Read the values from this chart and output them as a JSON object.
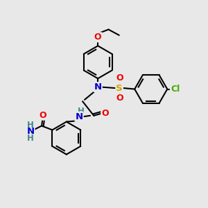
{
  "bg_color": "#e8e8e8",
  "bond_color": "#000000",
  "bond_lw": 1.5,
  "atom_colors": {
    "N": "#0000cc",
    "O": "#ee0000",
    "S": "#ccaa00",
    "Cl": "#44aa00",
    "C": "#000000",
    "H": "#448888",
    "NH2_N": "#0000cc",
    "NH2_H": "#448888"
  },
  "font_size": 9.0
}
